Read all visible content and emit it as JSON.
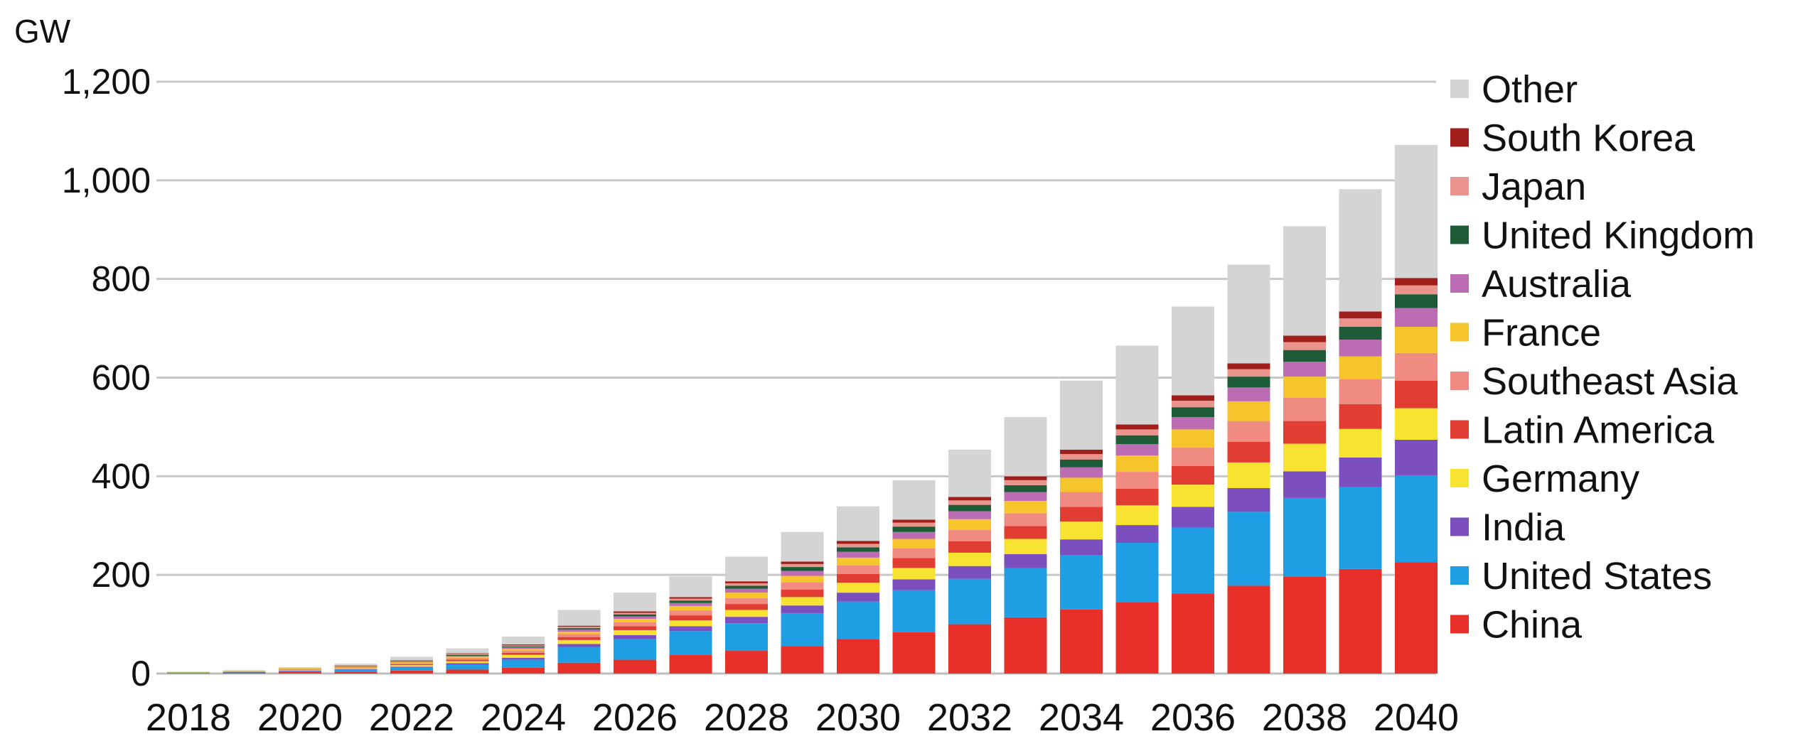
{
  "chart_data": {
    "type": "bar",
    "stacked": true,
    "y_unit_label": "GW",
    "title": "",
    "xlabel": "",
    "ylabel": "",
    "ylim": [
      0,
      1200
    ],
    "y_ticks": [
      0,
      200,
      400,
      600,
      800,
      1000,
      1200
    ],
    "y_tick_labels": [
      "0",
      "200",
      "400",
      "600",
      "800",
      "1,000",
      "1,200"
    ],
    "grid": true,
    "legend_position": "right",
    "categories": [
      "2018",
      "2019",
      "2020",
      "2021",
      "2022",
      "2023",
      "2024",
      "2025",
      "2026",
      "2027",
      "2028",
      "2029",
      "2030",
      "2031",
      "2032",
      "2033",
      "2034",
      "2035",
      "2036",
      "2037",
      "2038",
      "2039",
      "2040"
    ],
    "x_tick_labels": [
      "2018",
      "2020",
      "2022",
      "2024",
      "2026",
      "2028",
      "2030",
      "2032",
      "2034",
      "2036",
      "2038",
      "2040"
    ],
    "series": [
      {
        "name": "China",
        "color": "#e8302a",
        "values": [
          1,
          2,
          3,
          4,
          6,
          8,
          12,
          22,
          28,
          38,
          46,
          56,
          70,
          84,
          100,
          114,
          130,
          145,
          162,
          178,
          196,
          212,
          226
        ]
      },
      {
        "name": "United States",
        "color": "#1f9ee3",
        "values": [
          1,
          2,
          2,
          4,
          6,
          10,
          16,
          32,
          42,
          48,
          56,
          66,
          76,
          85,
          92,
          100,
          110,
          120,
          134,
          150,
          160,
          166,
          176
        ]
      },
      {
        "name": "India",
        "color": "#7c4fbf",
        "values": [
          0,
          0,
          1,
          1,
          2,
          3,
          4,
          6,
          8,
          10,
          13,
          16,
          18,
          22,
          26,
          28,
          32,
          36,
          42,
          48,
          54,
          60,
          72
        ]
      },
      {
        "name": "Germany",
        "color": "#f7e330",
        "values": [
          1,
          1,
          2,
          2,
          3,
          4,
          6,
          8,
          10,
          12,
          14,
          17,
          20,
          23,
          27,
          31,
          36,
          40,
          45,
          52,
          56,
          58,
          64
        ]
      },
      {
        "name": "Latin America",
        "color": "#e23d33",
        "values": [
          0,
          0,
          1,
          1,
          2,
          3,
          4,
          6,
          8,
          10,
          12,
          15,
          18,
          20,
          23,
          26,
          30,
          34,
          38,
          42,
          46,
          50,
          56
        ]
      },
      {
        "name": "Southeast Asia",
        "color": "#ef8b80",
        "values": [
          0,
          0,
          1,
          1,
          2,
          3,
          4,
          6,
          8,
          10,
          12,
          15,
          17,
          20,
          23,
          26,
          30,
          34,
          37,
          42,
          47,
          51,
          56
        ]
      },
      {
        "name": "France",
        "color": "#f6c42b",
        "values": [
          0,
          0,
          1,
          1,
          2,
          3,
          4,
          5,
          7,
          9,
          11,
          13,
          16,
          19,
          22,
          25,
          29,
          33,
          37,
          40,
          43,
          46,
          53
        ]
      },
      {
        "name": "Australia",
        "color": "#bc6cb2",
        "values": [
          0,
          0,
          0,
          1,
          1,
          2,
          3,
          4,
          5,
          6,
          8,
          10,
          12,
          14,
          16,
          18,
          21,
          23,
          25,
          28,
          30,
          34,
          38
        ]
      },
      {
        "name": "United Kingdom",
        "color": "#1e5c37",
        "values": [
          0,
          0,
          0,
          1,
          1,
          2,
          2,
          3,
          4,
          5,
          6,
          8,
          9,
          11,
          13,
          14,
          16,
          18,
          20,
          22,
          24,
          26,
          28
        ]
      },
      {
        "name": "Japan",
        "color": "#eb948d",
        "values": [
          0,
          0,
          0,
          1,
          1,
          2,
          2,
          3,
          3,
          4,
          5,
          6,
          7,
          8,
          9,
          10,
          11,
          12,
          13,
          15,
          16,
          17,
          18
        ]
      },
      {
        "name": "South Korea",
        "color": "#a11f1a",
        "values": [
          0,
          0,
          0,
          0,
          1,
          1,
          2,
          2,
          3,
          3,
          4,
          5,
          6,
          6,
          7,
          8,
          9,
          10,
          11,
          12,
          13,
          14,
          15
        ]
      },
      {
        "name": "Other",
        "color": "#d4d4d4",
        "values": [
          1,
          2,
          2,
          3,
          7,
          10,
          16,
          32,
          38,
          42,
          50,
          60,
          70,
          80,
          96,
          120,
          140,
          160,
          180,
          200,
          222,
          248,
          270
        ]
      }
    ]
  }
}
